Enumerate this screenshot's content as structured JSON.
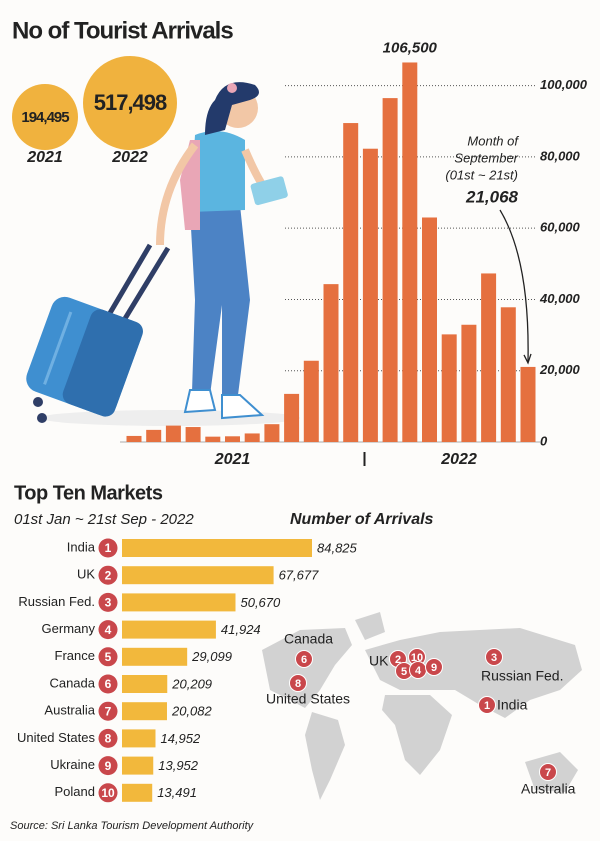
{
  "title": "No of Tourist Arrivals",
  "totals": {
    "years": [
      "2021",
      "2022"
    ],
    "values": [
      194495,
      517498
    ],
    "value_labels": [
      "194,495",
      "517,498"
    ]
  },
  "chart_data": [
    {
      "type": "bar",
      "categories": [
        null,
        null,
        null,
        null,
        null,
        null,
        null,
        null,
        null,
        null,
        null,
        null,
        null,
        null,
        null,
        null,
        null,
        null,
        null,
        null,
        null
      ],
      "x_groups": [
        "2021",
        "2022"
      ],
      "values": [
        1700,
        3400,
        4600,
        4200,
        1500,
        1600,
        2400,
        5000,
        13500,
        22800,
        44300,
        89500,
        82300,
        96500,
        106500,
        63000,
        30200,
        32900,
        47300,
        37800,
        21068
      ],
      "value_labels": [
        null,
        null,
        null,
        null,
        null,
        null,
        null,
        null,
        null,
        null,
        null,
        null,
        null,
        null,
        "106,500",
        null,
        null,
        null,
        null,
        null,
        "21,068"
      ],
      "color": "#e5703f",
      "ylim": [
        0,
        110000
      ],
      "yticks": [
        0,
        {
          "value": 20000,
          "label": "20,000"
        },
        {
          "value": 40000,
          "label": "40,000"
        },
        {
          "value": 60000,
          "label": "60,000"
        },
        {
          "value": 80000,
          "label": "80,000"
        },
        {
          "value": 100000,
          "label": "100,000"
        }
      ],
      "grid": true,
      "annotation": [
        "Month of",
        "September",
        "(01st ~ 21st)"
      ]
    },
    {
      "type": "hbar",
      "title": "Top Ten Markets",
      "subtitle": "01st Jan ~ 21st Sep - 2022",
      "value_title": "Number of Arrivals",
      "categories": [
        "India",
        "UK",
        "Russian Fed.",
        "Germany",
        "France",
        "Canada",
        "Australia",
        "United States",
        "Ukraine",
        "Poland"
      ],
      "ranks": [
        1,
        2,
        3,
        4,
        5,
        6,
        7,
        8,
        9,
        10
      ],
      "values": [
        84825,
        67677,
        50670,
        41924,
        29099,
        20209,
        20082,
        14952,
        13952,
        13491
      ],
      "value_labels": [
        "84,825",
        "67,677",
        "50,670",
        "41,924",
        "29,099",
        "20,209",
        "20,082",
        "14,952",
        "13,952",
        "13,491"
      ],
      "color": "#f2b83c",
      "rank_color": "#c9474b"
    }
  ],
  "map": {
    "labels": [
      "Canada",
      "United States",
      "UK",
      "Russian Fed.",
      "India",
      "Australia"
    ],
    "markers": [
      6,
      8,
      2,
      10,
      5,
      4,
      9,
      3,
      1,
      7
    ]
  },
  "source": "Source: Sri Lanka Tourism Development Authority"
}
